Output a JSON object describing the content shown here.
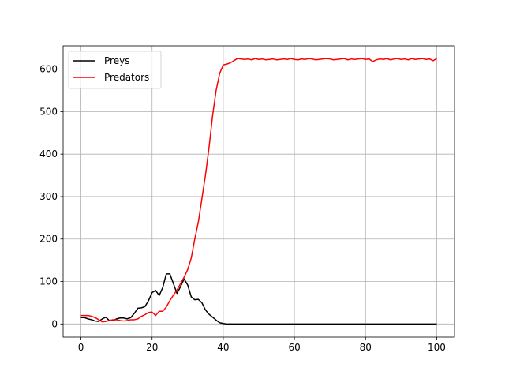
{
  "chart_data": {
    "type": "line",
    "title": "",
    "xlabel": "",
    "ylabel": "",
    "xlim": [
      -5,
      105
    ],
    "ylim": [
      -31,
      655
    ],
    "xticks": [
      0,
      20,
      40,
      60,
      80,
      100
    ],
    "yticks": [
      0,
      100,
      200,
      300,
      400,
      500,
      600
    ],
    "grid": true,
    "legend_position": "top-left",
    "series": [
      {
        "name": "Preys",
        "color": "#000000",
        "x": [
          0,
          1,
          2,
          3,
          4,
          5,
          6,
          7,
          8,
          9,
          10,
          11,
          12,
          13,
          14,
          15,
          16,
          17,
          18,
          19,
          20,
          21,
          22,
          23,
          24,
          25,
          26,
          27,
          28,
          29,
          30,
          31,
          32,
          33,
          34,
          35,
          36,
          37,
          38,
          39,
          40,
          41,
          42,
          43,
          44,
          45,
          46,
          47,
          48,
          49,
          50,
          51,
          52,
          53,
          54,
          55,
          56,
          57,
          58,
          59,
          60,
          61,
          62,
          63,
          64,
          65,
          66,
          67,
          68,
          69,
          70,
          71,
          72,
          73,
          74,
          75,
          76,
          77,
          78,
          79,
          80,
          81,
          82,
          83,
          84,
          85,
          86,
          87,
          88,
          89,
          90,
          91,
          92,
          93,
          94,
          95,
          96,
          97,
          98,
          99,
          100
        ],
        "y": [
          15,
          15,
          12,
          10,
          7,
          6,
          12,
          16,
          8,
          8,
          12,
          14,
          14,
          12,
          15,
          25,
          37,
          38,
          41,
          55,
          74,
          79,
          67,
          86,
          118,
          118,
          95,
          72,
          88,
          106,
          92,
          64,
          57,
          58,
          50,
          33,
          23,
          16,
          9,
          3,
          1,
          0,
          0,
          0,
          0,
          0,
          0,
          0,
          0,
          0,
          0,
          0,
          0,
          0,
          0,
          0,
          0,
          0,
          0,
          0,
          0,
          0,
          0,
          0,
          0,
          0,
          0,
          0,
          0,
          0,
          0,
          0,
          0,
          0,
          0,
          0,
          0,
          0,
          0,
          0,
          0,
          0,
          0,
          0,
          0,
          0,
          0,
          0,
          0,
          0,
          0,
          0,
          0,
          0,
          0,
          0,
          0,
          0,
          0,
          0,
          0
        ]
      },
      {
        "name": "Predators",
        "color": "#ff0000",
        "x": [
          0,
          1,
          2,
          3,
          4,
          5,
          6,
          7,
          8,
          9,
          10,
          11,
          12,
          13,
          14,
          15,
          16,
          17,
          18,
          19,
          20,
          21,
          22,
          23,
          24,
          25,
          26,
          27,
          28,
          29,
          30,
          31,
          32,
          33,
          34,
          35,
          36,
          37,
          38,
          39,
          40,
          41,
          42,
          43,
          44,
          45,
          46,
          47,
          48,
          49,
          50,
          51,
          52,
          53,
          54,
          55,
          56,
          57,
          58,
          59,
          60,
          61,
          62,
          63,
          64,
          65,
          66,
          67,
          68,
          69,
          70,
          71,
          72,
          73,
          74,
          75,
          76,
          77,
          78,
          79,
          80,
          81,
          82,
          83,
          84,
          85,
          86,
          87,
          88,
          89,
          90,
          91,
          92,
          93,
          94,
          95,
          96,
          97,
          98,
          99,
          100
        ],
        "y": [
          20,
          20,
          20,
          18,
          15,
          10,
          5,
          6,
          8,
          10,
          10,
          8,
          7,
          8,
          10,
          10,
          12,
          18,
          22,
          27,
          28,
          20,
          30,
          30,
          40,
          55,
          68,
          80,
          95,
          110,
          128,
          155,
          200,
          240,
          295,
          350,
          415,
          490,
          550,
          590,
          610,
          612,
          615,
          620,
          625,
          624,
          623,
          624,
          622,
          625,
          623,
          624,
          622,
          623,
          624,
          622,
          623,
          624,
          623,
          625,
          623,
          622,
          624,
          623,
          625,
          624,
          622,
          623,
          624,
          625,
          624,
          622,
          623,
          624,
          625,
          622,
          624,
          623,
          624,
          625,
          623,
          624,
          618,
          622,
          624,
          623,
          625,
          622,
          624,
          625,
          623,
          624,
          622,
          625,
          623,
          624,
          625,
          623,
          624,
          620,
          625
        ]
      }
    ]
  }
}
